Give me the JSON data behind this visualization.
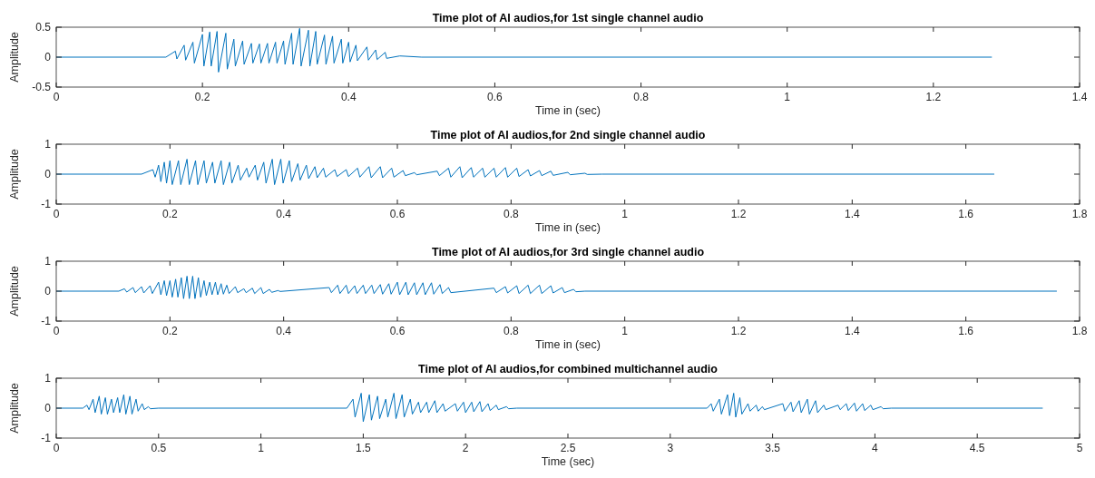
{
  "chart_data": [
    {
      "type": "line",
      "title": "Time plot of AI audios,for 1st single channel audio",
      "xlabel": "Time in (sec)",
      "ylabel": "Amplitude",
      "xlim": [
        0,
        1.4
      ],
      "ylim": [
        -0.5,
        0.5
      ],
      "xticks": [
        0,
        0.2,
        0.4,
        0.6,
        0.8,
        1,
        1.2,
        1.4
      ],
      "yticks": [
        -0.5,
        0,
        0.5
      ],
      "series": [
        {
          "color": "#0072bd",
          "x": [
            0,
            0.15,
            0.163,
            0.165,
            0.175,
            0.177,
            0.187,
            0.189,
            0.2,
            0.202,
            0.21,
            0.212,
            0.22,
            0.222,
            0.232,
            0.234,
            0.243,
            0.245,
            0.255,
            0.257,
            0.267,
            0.269,
            0.278,
            0.28,
            0.289,
            0.291,
            0.3,
            0.302,
            0.311,
            0.313,
            0.322,
            0.324,
            0.333,
            0.335,
            0.345,
            0.347,
            0.355,
            0.357,
            0.367,
            0.369,
            0.378,
            0.38,
            0.39,
            0.392,
            0.4,
            0.402,
            0.41,
            0.412,
            0.425,
            0.427,
            0.437,
            0.439,
            0.45,
            0.452,
            0.47,
            0.5,
            1.28
          ],
          "values": [
            0,
            0,
            0.1,
            -0.03,
            0.2,
            -0.05,
            0.25,
            -0.1,
            0.38,
            -0.15,
            0.42,
            -0.15,
            0.43,
            -0.25,
            0.4,
            -0.2,
            0.3,
            -0.15,
            0.27,
            -0.12,
            0.23,
            -0.1,
            0.22,
            -0.1,
            0.23,
            -0.1,
            0.25,
            -0.1,
            0.27,
            -0.12,
            0.4,
            -0.12,
            0.48,
            -0.15,
            0.45,
            -0.15,
            0.43,
            -0.12,
            0.37,
            -0.12,
            0.35,
            -0.1,
            0.3,
            -0.1,
            0.25,
            -0.08,
            0.2,
            -0.06,
            0.17,
            -0.05,
            0.12,
            -0.04,
            0.08,
            -0.02,
            0.02,
            0,
            0
          ]
        }
      ]
    },
    {
      "type": "line",
      "title": "Time plot of AI audios,for 2nd single channel audio",
      "xlabel": "Time in (sec)",
      "ylabel": "Amplitude",
      "xlim": [
        0,
        1.8
      ],
      "ylim": [
        -1,
        1
      ],
      "xticks": [
        0,
        0.2,
        0.4,
        0.6,
        0.8,
        1,
        1.2,
        1.4,
        1.6,
        1.8
      ],
      "yticks": [
        -1,
        0,
        1
      ],
      "series": [
        {
          "color": "#0072bd",
          "x": [
            0,
            0.15,
            0.17,
            0.174,
            0.18,
            0.184,
            0.19,
            0.194,
            0.2,
            0.204,
            0.215,
            0.219,
            0.23,
            0.234,
            0.245,
            0.249,
            0.26,
            0.264,
            0.275,
            0.279,
            0.29,
            0.294,
            0.305,
            0.309,
            0.32,
            0.324,
            0.335,
            0.339,
            0.35,
            0.354,
            0.365,
            0.369,
            0.38,
            0.384,
            0.395,
            0.399,
            0.41,
            0.414,
            0.425,
            0.429,
            0.44,
            0.444,
            0.455,
            0.459,
            0.47,
            0.474,
            0.49,
            0.494,
            0.51,
            0.514,
            0.53,
            0.534,
            0.55,
            0.554,
            0.57,
            0.574,
            0.59,
            0.594,
            0.61,
            0.614,
            0.63,
            0.634,
            0.67,
            0.674,
            0.69,
            0.694,
            0.71,
            0.714,
            0.73,
            0.734,
            0.75,
            0.754,
            0.77,
            0.774,
            0.79,
            0.794,
            0.81,
            0.814,
            0.83,
            0.834,
            0.85,
            0.854,
            0.87,
            0.874,
            0.9,
            0.904,
            0.93,
            0.934,
            0.96,
            1.65
          ],
          "values": [
            0,
            0,
            0.15,
            -0.1,
            0.3,
            -0.25,
            0.4,
            -0.3,
            0.45,
            -0.35,
            0.45,
            -0.35,
            0.5,
            -0.35,
            0.45,
            -0.35,
            0.45,
            -0.3,
            0.4,
            -0.3,
            0.45,
            -0.35,
            0.4,
            -0.3,
            0.3,
            -0.2,
            0.2,
            -0.1,
            0.3,
            -0.2,
            0.4,
            -0.3,
            0.5,
            -0.35,
            0.5,
            -0.3,
            0.45,
            -0.25,
            0.35,
            -0.2,
            0.3,
            -0.15,
            0.25,
            -0.12,
            0.2,
            -0.1,
            0.15,
            -0.08,
            0.15,
            -0.08,
            0.2,
            -0.1,
            0.25,
            -0.12,
            0.25,
            -0.12,
            0.2,
            -0.1,
            0.12,
            -0.05,
            0.05,
            -0.02,
            0.1,
            -0.05,
            0.2,
            -0.1,
            0.25,
            -0.12,
            0.22,
            -0.1,
            0.2,
            -0.1,
            0.2,
            -0.1,
            0.22,
            -0.1,
            0.2,
            -0.08,
            0.15,
            -0.06,
            0.12,
            -0.05,
            0.1,
            -0.04,
            0.06,
            -0.02,
            0.03,
            -0.01,
            0,
            0
          ]
        }
      ]
    },
    {
      "type": "line",
      "title": "Time plot of AI audios,for 3rd single channel audio",
      "xlabel": "Time in (sec)",
      "ylabel": "Amplitude",
      "xlim": [
        0,
        1.8
      ],
      "ylim": [
        -1,
        1
      ],
      "xticks": [
        0,
        0.2,
        0.4,
        0.6,
        0.8,
        1,
        1.2,
        1.4,
        1.6,
        1.8
      ],
      "yticks": [
        -1,
        0,
        1
      ],
      "series": [
        {
          "color": "#0072bd",
          "x": [
            0,
            0.11,
            0.12,
            0.124,
            0.135,
            0.139,
            0.15,
            0.154,
            0.165,
            0.169,
            0.18,
            0.184,
            0.19,
            0.194,
            0.2,
            0.204,
            0.21,
            0.214,
            0.22,
            0.224,
            0.23,
            0.234,
            0.24,
            0.244,
            0.25,
            0.254,
            0.26,
            0.264,
            0.27,
            0.274,
            0.28,
            0.284,
            0.29,
            0.294,
            0.3,
            0.304,
            0.315,
            0.319,
            0.33,
            0.334,
            0.345,
            0.349,
            0.36,
            0.364,
            0.375,
            0.379,
            0.39,
            0.394,
            0.48,
            0.484,
            0.495,
            0.499,
            0.51,
            0.514,
            0.525,
            0.529,
            0.54,
            0.544,
            0.555,
            0.559,
            0.57,
            0.574,
            0.585,
            0.589,
            0.6,
            0.604,
            0.615,
            0.619,
            0.63,
            0.634,
            0.645,
            0.649,
            0.66,
            0.664,
            0.675,
            0.679,
            0.69,
            0.694,
            0.77,
            0.774,
            0.79,
            0.794,
            0.81,
            0.814,
            0.83,
            0.834,
            0.85,
            0.854,
            0.87,
            0.874,
            0.89,
            0.894,
            0.91,
            0.914,
            0.93,
            1.76
          ],
          "values": [
            0,
            0,
            0.08,
            -0.03,
            0.12,
            -0.05,
            0.15,
            -0.06,
            0.18,
            -0.08,
            0.3,
            -0.12,
            0.35,
            -0.15,
            0.35,
            -0.2,
            0.4,
            -0.2,
            0.45,
            -0.25,
            0.5,
            -0.25,
            0.5,
            -0.25,
            0.45,
            -0.2,
            0.35,
            -0.15,
            0.3,
            -0.12,
            0.3,
            -0.12,
            0.25,
            -0.1,
            0.2,
            -0.08,
            0.15,
            -0.05,
            0.08,
            -0.05,
            0.1,
            -0.08,
            0.12,
            -0.08,
            0.06,
            -0.04,
            0.02,
            -0.01,
            0.12,
            -0.05,
            0.2,
            -0.08,
            0.2,
            -0.08,
            0.18,
            -0.08,
            0.2,
            -0.08,
            0.2,
            -0.08,
            0.22,
            -0.1,
            0.25,
            -0.1,
            0.3,
            -0.12,
            0.3,
            -0.12,
            0.28,
            -0.12,
            0.28,
            -0.12,
            0.28,
            -0.1,
            0.22,
            -0.08,
            0.12,
            -0.05,
            0.1,
            -0.05,
            0.15,
            -0.06,
            0.18,
            -0.08,
            0.2,
            -0.08,
            0.2,
            -0.08,
            0.18,
            -0.06,
            0.12,
            -0.05,
            0.06,
            -0.02,
            0,
            0
          ]
        }
      ]
    },
    {
      "type": "line",
      "title": "Time plot of AI audios,for combined multichannel audio",
      "xlabel": "Time (sec)",
      "ylabel": "Amplitude",
      "xlim": [
        0,
        5
      ],
      "ylim": [
        -1,
        1
      ],
      "xticks": [
        0,
        0.5,
        1,
        1.5,
        2,
        2.5,
        3,
        3.5,
        4,
        4.5,
        5
      ],
      "yticks": [
        -1,
        0,
        1
      ],
      "series": [
        {
          "color": "#0072bd",
          "x": [
            0,
            0.13,
            0.15,
            0.16,
            0.18,
            0.19,
            0.21,
            0.22,
            0.24,
            0.25,
            0.27,
            0.28,
            0.3,
            0.31,
            0.33,
            0.34,
            0.36,
            0.37,
            0.39,
            0.4,
            0.42,
            0.43,
            0.45,
            0.46,
            0.5,
            1.42,
            1.45,
            1.46,
            1.49,
            1.5,
            1.53,
            1.54,
            1.57,
            1.58,
            1.61,
            1.62,
            1.65,
            1.66,
            1.69,
            1.7,
            1.73,
            1.74,
            1.77,
            1.78,
            1.81,
            1.82,
            1.85,
            1.86,
            1.89,
            1.9,
            1.95,
            1.96,
            1.99,
            2,
            2.03,
            2.04,
            2.07,
            2.08,
            2.11,
            2.12,
            2.15,
            2.16,
            2.2,
            2.21,
            2.25,
            3.18,
            3.2,
            3.21,
            3.24,
            3.25,
            3.28,
            3.29,
            3.31,
            3.32,
            3.34,
            3.35,
            3.38,
            3.39,
            3.42,
            3.43,
            3.45,
            3.46,
            3.55,
            3.56,
            3.59,
            3.6,
            3.63,
            3.64,
            3.67,
            3.68,
            3.71,
            3.72,
            3.75,
            3.76,
            3.82,
            3.83,
            3.86,
            3.87,
            3.9,
            3.91,
            3.94,
            3.95,
            3.98,
            3.99,
            4.03,
            4.04,
            4.08,
            4.82
          ],
          "values": [
            0,
            0,
            0.1,
            -0.05,
            0.3,
            -0.15,
            0.4,
            -0.2,
            0.35,
            -0.2,
            0.3,
            -0.15,
            0.35,
            -0.15,
            0.45,
            -0.2,
            0.4,
            -0.2,
            0.3,
            -0.1,
            0.15,
            -0.05,
            0.05,
            -0.02,
            0,
            0,
            0.3,
            -0.3,
            0.5,
            -0.45,
            0.45,
            -0.4,
            0.4,
            -0.35,
            0.3,
            -0.3,
            0.5,
            -0.35,
            0.45,
            -0.3,
            0.3,
            -0.2,
            0.2,
            -0.15,
            0.2,
            -0.15,
            0.25,
            -0.15,
            0.15,
            -0.1,
            0.15,
            -0.1,
            0.2,
            -0.15,
            0.2,
            -0.12,
            0.22,
            -0.12,
            0.15,
            -0.08,
            0.1,
            -0.05,
            0.05,
            -0.02,
            0,
            0,
            0.15,
            -0.1,
            0.3,
            -0.2,
            0.45,
            -0.25,
            0.5,
            -0.3,
            0.35,
            -0.2,
            0.15,
            -0.1,
            0.1,
            -0.1,
            0.05,
            -0.05,
            0.15,
            -0.1,
            0.2,
            -0.12,
            0.25,
            -0.15,
            0.3,
            -0.2,
            0.25,
            -0.15,
            0.1,
            -0.05,
            0.1,
            -0.05,
            0.15,
            -0.08,
            0.17,
            -0.1,
            0.15,
            -0.08,
            0.1,
            -0.05,
            0.05,
            -0.02,
            0,
            0
          ]
        }
      ]
    }
  ]
}
